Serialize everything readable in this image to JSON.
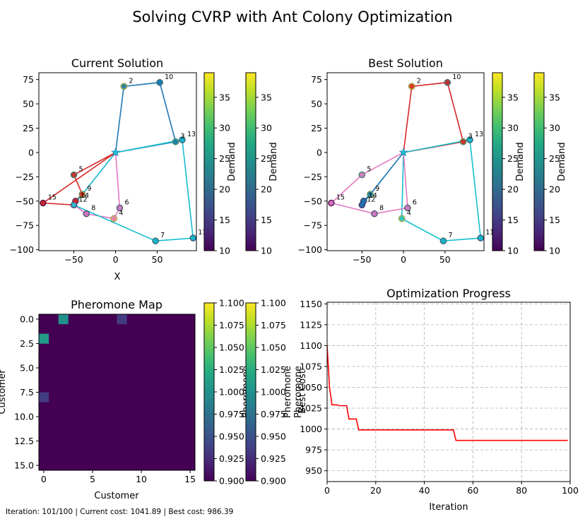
{
  "suptitle": "Solving CVRP with Ant Colony Optimization",
  "status_line": "Iteration: 101/100 | Current cost: 1041.89 | Best cost: 986.39",
  "chart_data": [
    {
      "type": "scatter",
      "title": "Current Solution",
      "xlabel": "X",
      "ylabel": "",
      "xlim": [
        -92,
        97
      ],
      "ylim": [
        -101,
        82
      ],
      "xticks": [
        -50,
        0,
        50
      ],
      "yticks": [
        75,
        50,
        25,
        0,
        -25,
        -50,
        -75,
        -100
      ],
      "depot": {
        "x": 0,
        "y": 0
      },
      "customers": [
        {
          "id": 2,
          "x": 10,
          "y": 68,
          "demand": 37
        },
        {
          "id": 10,
          "x": 53,
          "y": 72,
          "demand": 24
        },
        {
          "id": 3,
          "x": 72,
          "y": 11,
          "demand": 30
        },
        {
          "id": 13,
          "x": 80,
          "y": 13,
          "demand": 20
        },
        {
          "id": 5,
          "x": -50,
          "y": -23,
          "demand": 28
        },
        {
          "id": 9,
          "x": -40,
          "y": -43,
          "demand": 33
        },
        {
          "id": 14,
          "x": -48,
          "y": -50,
          "demand": 15
        },
        {
          "id": 12,
          "x": -50,
          "y": -54,
          "demand": 14
        },
        {
          "id": 15,
          "x": -87,
          "y": -52,
          "demand": 10
        },
        {
          "id": 8,
          "x": -35,
          "y": -63,
          "demand": 20
        },
        {
          "id": 6,
          "x": 5,
          "y": -57,
          "demand": 22
        },
        {
          "id": 4,
          "x": -2,
          "y": -68,
          "demand": 38
        },
        {
          "id": 7,
          "x": 48,
          "y": -91,
          "demand": 21
        },
        {
          "id": 11,
          "x": 93,
          "y": -88,
          "demand": 18
        }
      ],
      "routes": [
        {
          "color": "#1f77b4",
          "path": [
            0,
            2,
            10,
            3,
            0
          ]
        },
        {
          "color": "#d62728",
          "path": [
            0,
            5,
            9,
            14,
            12,
            15,
            0
          ]
        },
        {
          "color": "#e377c2",
          "path": [
            0,
            6,
            4,
            8,
            12,
            0
          ]
        },
        {
          "color": "#17becf",
          "path": [
            0,
            13,
            11,
            7,
            12,
            0
          ]
        }
      ],
      "colorbars": [
        {
          "label": "Demand",
          "range": [
            10,
            39
          ],
          "ticks": [
            10,
            15,
            20,
            25,
            30,
            35
          ]
        },
        {
          "label": "Demand",
          "range": [
            10,
            39
          ],
          "ticks": [
            10,
            15,
            20,
            25,
            30,
            35
          ]
        }
      ]
    },
    {
      "type": "scatter",
      "title": "Best Solution",
      "xlabel": "",
      "ylabel": "",
      "xlim": [
        -92,
        97
      ],
      "ylim": [
        -101,
        82
      ],
      "xticks": [
        -50,
        0,
        50
      ],
      "yticks": [
        75,
        50,
        25,
        0,
        -25,
        -50,
        -75,
        -100
      ],
      "depot": {
        "x": 0,
        "y": 0
      },
      "customers": [
        {
          "id": 2,
          "x": 10,
          "y": 68,
          "demand": 37
        },
        {
          "id": 10,
          "x": 53,
          "y": 72,
          "demand": 24
        },
        {
          "id": 3,
          "x": 72,
          "y": 11,
          "demand": 30
        },
        {
          "id": 13,
          "x": 80,
          "y": 13,
          "demand": 20
        },
        {
          "id": 5,
          "x": -50,
          "y": -23,
          "demand": 28
        },
        {
          "id": 9,
          "x": -40,
          "y": -43,
          "demand": 33
        },
        {
          "id": 14,
          "x": -48,
          "y": -50,
          "demand": 15
        },
        {
          "id": 12,
          "x": -50,
          "y": -54,
          "demand": 14
        },
        {
          "id": 15,
          "x": -87,
          "y": -52,
          "demand": 10
        },
        {
          "id": 8,
          "x": -35,
          "y": -63,
          "demand": 20
        },
        {
          "id": 6,
          "x": 5,
          "y": -57,
          "demand": 22
        },
        {
          "id": 4,
          "x": -2,
          "y": -68,
          "demand": 38
        },
        {
          "id": 7,
          "x": 48,
          "y": -91,
          "demand": 21
        },
        {
          "id": 11,
          "x": 93,
          "y": -88,
          "demand": 18
        }
      ],
      "routes": [
        {
          "color": "#d62728",
          "path": [
            0,
            2,
            10,
            3,
            0
          ]
        },
        {
          "color": "#17becf",
          "path": [
            0,
            13,
            11,
            7,
            4,
            0
          ]
        },
        {
          "color": "#e377c2",
          "path": [
            0,
            5,
            15,
            8,
            6,
            0
          ]
        },
        {
          "color": "#1f77b4",
          "path": [
            0,
            9,
            14,
            12,
            0
          ]
        }
      ],
      "colorbars": [
        {
          "label": "Demand",
          "range": [
            10,
            39
          ],
          "ticks": [
            10,
            15,
            20,
            25,
            30,
            35
          ]
        },
        {
          "label": "Demand",
          "range": [
            10,
            39
          ],
          "ticks": [
            10,
            15,
            20,
            25,
            30,
            35
          ]
        }
      ]
    },
    {
      "type": "heatmap",
      "title": "Pheromone Map",
      "xlabel": "Customer",
      "ylabel": "Customer",
      "size": 16,
      "xticks": [
        0,
        5,
        10,
        15
      ],
      "yticks": [
        0.0,
        2.5,
        5.0,
        7.5,
        10.0,
        12.5,
        15.0
      ],
      "base_value": 0.9,
      "cells": [
        {
          "row": 0,
          "col": 2,
          "value": 1.0
        },
        {
          "row": 0,
          "col": 8,
          "value": 0.935
        },
        {
          "row": 2,
          "col": 0,
          "value": 1.01
        },
        {
          "row": 8,
          "col": 0,
          "value": 0.935
        }
      ],
      "colorbars": [
        {
          "label": "Pheromone",
          "range": [
            0.9,
            1.1
          ],
          "ticks": [
            0.9,
            0.925,
            0.95,
            0.975,
            1.0,
            1.025,
            1.05,
            1.075,
            1.1
          ]
        },
        {
          "label": "Pheromone",
          "range": [
            0.9,
            1.1
          ],
          "ticks": [
            0.9,
            0.925,
            0.95,
            0.975,
            1.0,
            1.025,
            1.05,
            1.075,
            1.1
          ]
        }
      ]
    },
    {
      "type": "line",
      "title": "Optimization Progress",
      "xlabel": "Iteration",
      "ylabel": "Best Cost",
      "ylabel_overlap": "Pheromone",
      "xlim": [
        0,
        100
      ],
      "ylim": [
        937,
        1152
      ],
      "xticks": [
        0,
        20,
        40,
        60,
        80,
        100
      ],
      "yticks": [
        950,
        975,
        1000,
        1025,
        1050,
        1075,
        1100,
        1125,
        1150
      ],
      "grid": true,
      "series": [
        {
          "color": "#ff0000",
          "x": [
            0,
            1,
            2,
            4,
            5,
            8,
            9,
            12,
            13,
            52,
            53,
            99
          ],
          "y": [
            1100,
            1050,
            1029,
            1029,
            1028,
            1028,
            1012,
            1012,
            999,
            999,
            986.39,
            986.39
          ]
        }
      ]
    }
  ]
}
